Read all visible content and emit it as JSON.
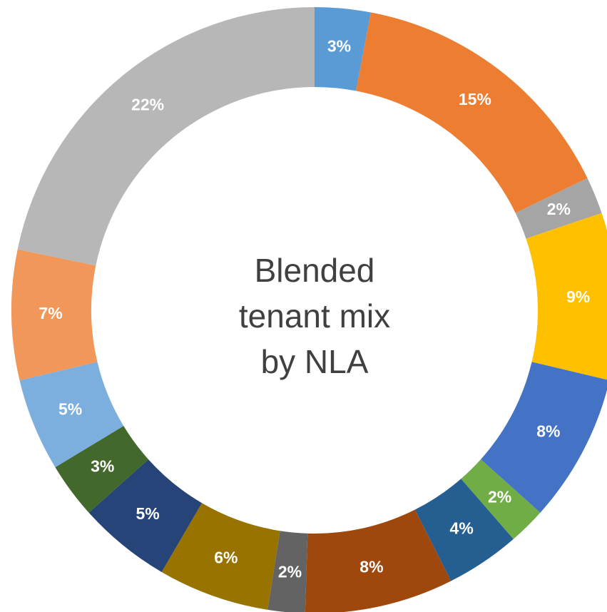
{
  "chart_data": {
    "type": "donut",
    "title": [
      "Blended",
      "tenant mix",
      "by NLA"
    ],
    "categories": [
      null,
      null,
      null,
      null,
      null,
      null,
      null,
      null,
      null,
      null,
      null,
      null,
      null,
      null,
      null
    ],
    "values": [
      3,
      15,
      2,
      9,
      8,
      2,
      4,
      8,
      2,
      6,
      5,
      3,
      5,
      7,
      22
    ],
    "value_labels": [
      "3%",
      "15%",
      "2%",
      "9%",
      "8%",
      "2%",
      "4%",
      "8%",
      "2%",
      "6%",
      "5%",
      "3%",
      "5%",
      "7%",
      "22%"
    ],
    "colors": [
      "#5b9bd5",
      "#ed7d31",
      "#a5a5a5",
      "#ffc000",
      "#4472c4",
      "#70ad47",
      "#255e91",
      "#9e480e",
      "#636363",
      "#997300",
      "#264478",
      "#43682b",
      "#7cafdd",
      "#f1975a",
      "#b7b7b7"
    ]
  }
}
